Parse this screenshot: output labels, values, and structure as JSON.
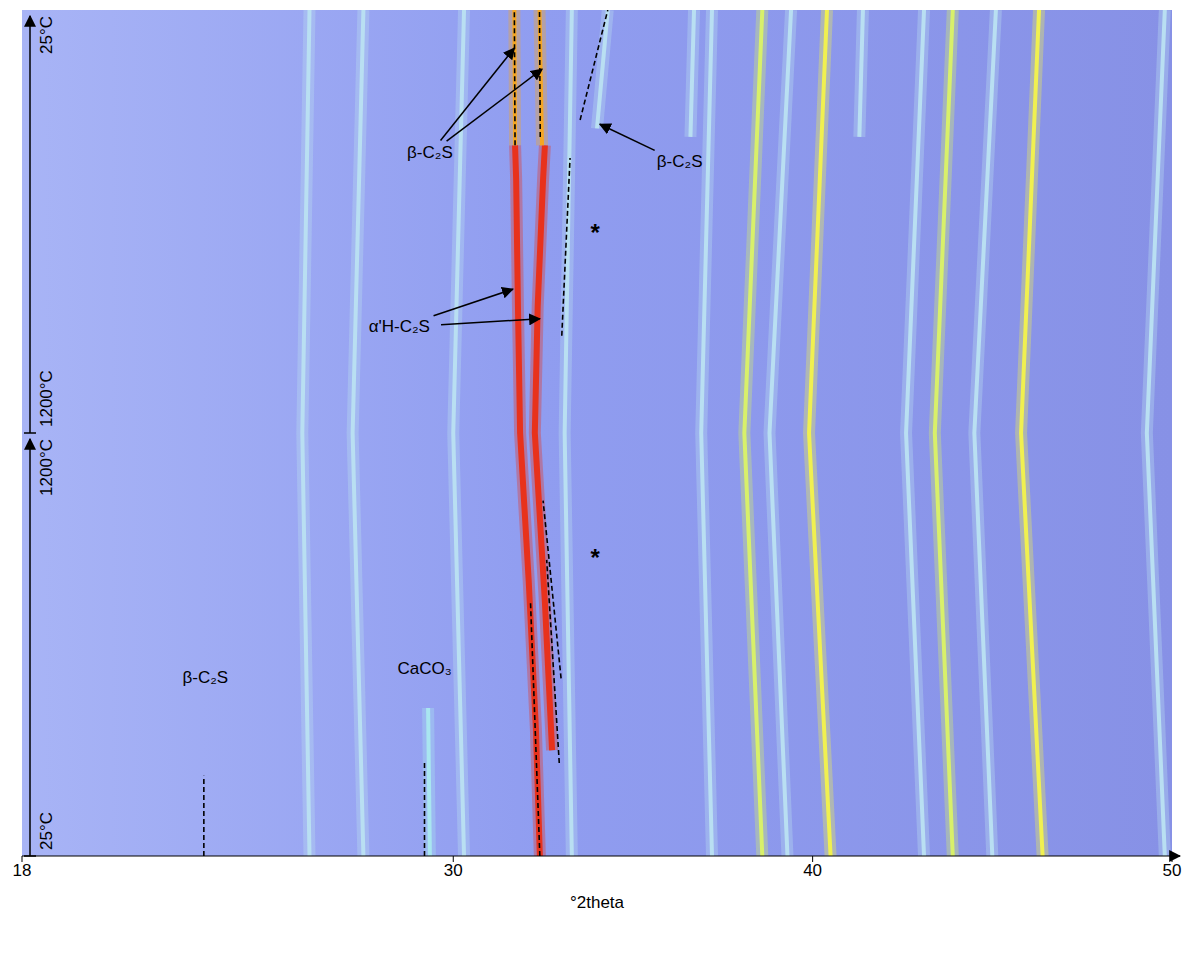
{
  "chart_data": {
    "type": "line",
    "xlabel": "°2theta",
    "xlim": [
      18,
      50
    ],
    "xticks": [
      18,
      30,
      40,
      50
    ],
    "ylim": [
      0,
      2
    ],
    "tick_labels": "x",
    "grid": false,
    "y_segments": [
      {
        "start": 0,
        "end": 1,
        "from": "25°C",
        "to": "1200°C"
      },
      {
        "start": 1,
        "end": 2,
        "from": "1200°C",
        "to": "25°C"
      }
    ],
    "series": [
      {
        "color": "#e8321c",
        "x": [
          32.41,
          32.3,
          32.1,
          31.86,
          31.8,
          31.75,
          31.72
        ],
        "values": [
          0,
          0.3,
          0.65,
          1.0,
          1.3,
          1.6,
          1.68
        ]
      },
      {
        "color": "#e8321c",
        "x": [
          32.75,
          32.55,
          32.27,
          32.35,
          32.5,
          32.55
        ],
        "values": [
          0.25,
          0.6,
          1.0,
          1.3,
          1.6,
          1.68
        ]
      },
      {
        "color": "#f5a623",
        "x": [
          31.72,
          31.7
        ],
        "values": [
          1.68,
          2.0
        ]
      },
      {
        "color": "#f5a623",
        "x": [
          32.47,
          32.4
        ],
        "values": [
          1.68,
          2.0
        ]
      },
      {
        "color": "#b9dff2",
        "x": [
          34.0,
          34.3
        ],
        "values": [
          1.72,
          2.0
        ]
      },
      {
        "color": "#b9dff2",
        "x": [
          26.0,
          25.8,
          26.0
        ],
        "values": [
          0,
          1,
          2
        ]
      },
      {
        "color": "#b9dff2",
        "x": [
          27.5,
          27.2,
          27.5
        ],
        "values": [
          0,
          1,
          2
        ]
      },
      {
        "color": "#b9dff2",
        "x": [
          30.3,
          30.0,
          30.3
        ],
        "values": [
          0,
          1,
          2
        ]
      },
      {
        "color": "#a9e6f0",
        "x": [
          29.35,
          29.3
        ],
        "values": [
          0,
          0.35
        ]
      },
      {
        "color": "#b9dff2",
        "x": [
          33.3,
          33.1,
          33.3
        ],
        "values": [
          0,
          1,
          2
        ]
      },
      {
        "color": "#b9dff2",
        "x": [
          37.2,
          36.9,
          37.2
        ],
        "values": [
          0,
          1,
          2
        ]
      },
      {
        "color": "#d8f06a",
        "x": [
          38.6,
          38.1,
          38.6
        ],
        "values": [
          0,
          1,
          2
        ]
      },
      {
        "color": "#b9dff2",
        "x": [
          39.3,
          38.8,
          39.4
        ],
        "values": [
          0,
          1,
          2
        ]
      },
      {
        "color": "#f0f050",
        "x": [
          40.5,
          39.9,
          40.4
        ],
        "values": [
          0,
          1,
          2
        ]
      },
      {
        "color": "#b9dff2",
        "x": [
          43.1,
          42.6,
          43.1
        ],
        "values": [
          0,
          1,
          2
        ]
      },
      {
        "color": "#d8f06a",
        "x": [
          43.9,
          43.4,
          43.9
        ],
        "values": [
          0,
          1,
          2
        ]
      },
      {
        "color": "#b9dff2",
        "x": [
          45.0,
          44.5,
          45.1
        ],
        "values": [
          0,
          1,
          2
        ]
      },
      {
        "color": "#f0f050",
        "x": [
          46.4,
          45.8,
          46.3
        ],
        "values": [
          0,
          1,
          2
        ]
      },
      {
        "color": "#b9dff2",
        "x": [
          49.8,
          49.3,
          49.8
        ],
        "values": [
          0,
          1,
          2
        ]
      },
      {
        "color": "#b9dff2",
        "x": [
          41.3,
          41.4
        ],
        "values": [
          1.7,
          2.0
        ]
      },
      {
        "color": "#b9dff2",
        "x": [
          36.6,
          36.7
        ],
        "values": [
          1.7,
          2.0
        ]
      }
    ],
    "marker_lines": [
      {
        "color": "#000000",
        "line_style": "dashed",
        "x": [
          23.06,
          23.06
        ],
        "values": [
          0,
          0.19
        ]
      },
      {
        "color": "#000000",
        "line_style": "dashed",
        "x": [
          29.2,
          29.2
        ],
        "values": [
          0,
          0.22
        ]
      },
      {
        "color": "#000000",
        "line_style": "dashed",
        "x": [
          32.41,
          32.15
        ],
        "values": [
          0,
          0.6
        ]
      },
      {
        "color": "#000000",
        "line_style": "dashed",
        "x": [
          32.95,
          32.6
        ],
        "values": [
          0.22,
          0.7
        ]
      },
      {
        "color": "#000000",
        "line_style": "dashed",
        "x": [
          33.0,
          32.5
        ],
        "values": [
          0.42,
          0.84
        ]
      },
      {
        "color": "#000000",
        "line_style": "dashed",
        "x": [
          33.02,
          33.25
        ],
        "values": [
          1.23,
          1.65
        ]
      },
      {
        "color": "#000000",
        "line_style": "dashed",
        "x": [
          31.72,
          31.7
        ],
        "values": [
          1.68,
          2.0
        ]
      },
      {
        "color": "#000000",
        "line_style": "dashed",
        "x": [
          32.42,
          32.4
        ],
        "values": [
          1.7,
          2.0
        ]
      },
      {
        "color": "#000000",
        "line_style": "dashed",
        "x": [
          33.53,
          34.3
        ],
        "values": [
          1.74,
          2.0
        ]
      }
    ],
    "annotations": [
      {
        "text": "β-C₂S",
        "x": 29.35,
        "y": 1.66,
        "targets": [
          [
            31.7,
            1.91
          ],
          [
            32.47,
            1.86
          ]
        ]
      },
      {
        "text": "β-C₂S",
        "x": 36.3,
        "y": 1.64,
        "targets": [
          [
            34.08,
            1.73
          ]
        ]
      },
      {
        "text": "α'H-C₂S",
        "x": 28.5,
        "y": 1.25,
        "targets": [
          [
            31.66,
            1.34
          ],
          [
            32.41,
            1.27
          ]
        ]
      },
      {
        "text": "*",
        "x": 33.95,
        "y": 1.47,
        "targets": []
      },
      {
        "text": "*",
        "x": 33.95,
        "y": 0.7,
        "targets": []
      },
      {
        "text": "β-C₂S",
        "x": 23.1,
        "y": 0.42,
        "targets": []
      },
      {
        "text": "CaCO₃",
        "x": 29.2,
        "y": 0.44,
        "targets": []
      }
    ]
  }
}
